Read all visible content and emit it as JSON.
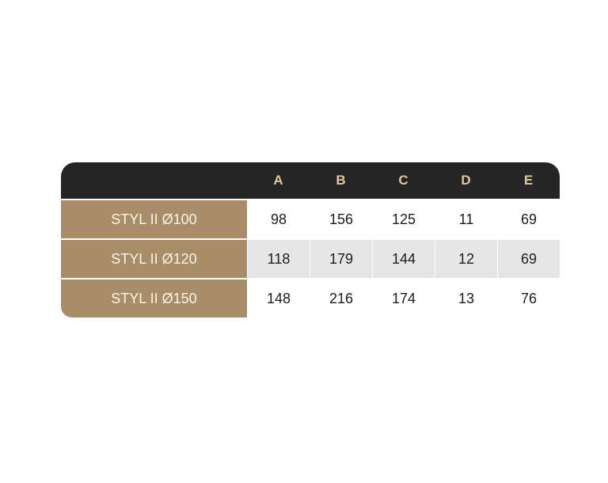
{
  "table": {
    "columns": [
      "A",
      "B",
      "C",
      "D",
      "E"
    ],
    "rows": [
      {
        "label": "STYL II Ø100",
        "values": [
          "98",
          "156",
          "125",
          "11",
          "69"
        ]
      },
      {
        "label": "STYL II Ø120",
        "values": [
          "118",
          "179",
          "144",
          "12",
          "69"
        ]
      },
      {
        "label": "STYL II Ø150",
        "values": [
          "148",
          "216",
          "174",
          "13",
          "76"
        ]
      }
    ]
  },
  "colors": {
    "header_bg": "#252525",
    "header_text": "#e0c79a",
    "label_bg": "#a88d68",
    "label_text": "#fbf3e6",
    "alt_row": "#e6e6e6"
  }
}
